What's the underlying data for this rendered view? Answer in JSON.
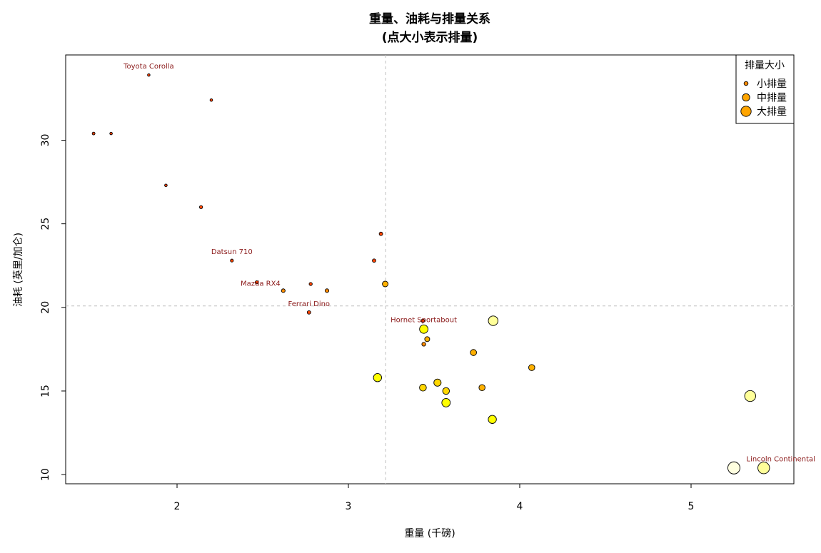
{
  "chart_data": {
    "type": "scatter",
    "title": "重量、油耗与排量关系",
    "subtitle": "(点大小表示排量)",
    "xlabel": "重量 (千磅)",
    "ylabel": "油耗 (英里/加仑)",
    "xlim": [
      1.35,
      5.6
    ],
    "ylim": [
      9.45,
      35.1
    ],
    "xticks": [
      2,
      3,
      4,
      5
    ],
    "yticks": [
      10,
      15,
      20,
      25,
      30
    ],
    "reference_lines": {
      "vertical_x": 3.217,
      "horizontal_y": 20.09,
      "style": "dashed gray"
    },
    "grid": false,
    "legend": {
      "title": "排量大小",
      "placement": "top-right",
      "entries": [
        {
          "label": "小排量",
          "size": "small",
          "color": "#ff8c00"
        },
        {
          "label": "中排量",
          "size": "medium",
          "color": "#ffa500"
        },
        {
          "label": "大排量",
          "size": "large",
          "color": "#ffa500"
        }
      ]
    },
    "point_colors": {
      "small": "#ff4500",
      "low_mid": "#ff8c00",
      "mid": "#ffb000",
      "mid_high": "#ffd700",
      "high": "#ffff00",
      "very_high": "#ffff99",
      "max": "#ffffe0"
    },
    "points": [
      {
        "x": 1.513,
        "y": 30.4,
        "disp": 95.1,
        "color_key": "small"
      },
      {
        "x": 1.615,
        "y": 30.4,
        "disp": 75.7,
        "color_key": "small"
      },
      {
        "x": 1.835,
        "y": 33.9,
        "disp": 71.1,
        "color_key": "small",
        "label": "Toyota Corolla"
      },
      {
        "x": 1.935,
        "y": 27.3,
        "disp": 79.0,
        "color_key": "small"
      },
      {
        "x": 2.2,
        "y": 32.4,
        "disp": 78.7,
        "color_key": "small"
      },
      {
        "x": 2.14,
        "y": 26.0,
        "disp": 120.3,
        "color_key": "small"
      },
      {
        "x": 2.32,
        "y": 22.8,
        "disp": 108.0,
        "color_key": "small",
        "label": "Datsun 710"
      },
      {
        "x": 2.465,
        "y": 21.5,
        "disp": 120.1,
        "color_key": "small"
      },
      {
        "x": 2.62,
        "y": 21.0,
        "disp": 160.0,
        "color_key": "low_mid",
        "label": "Mazda RX4"
      },
      {
        "x": 2.77,
        "y": 19.7,
        "disp": 145.0,
        "color_key": "small",
        "label": "Ferrari Dino"
      },
      {
        "x": 2.78,
        "y": 21.4,
        "disp": 121.0,
        "color_key": "small"
      },
      {
        "x": 2.875,
        "y": 21.0,
        "disp": 160.0,
        "color_key": "low_mid"
      },
      {
        "x": 3.15,
        "y": 22.8,
        "disp": 140.8,
        "color_key": "small"
      },
      {
        "x": 3.19,
        "y": 24.4,
        "disp": 146.7,
        "color_key": "small"
      },
      {
        "x": 3.215,
        "y": 21.4,
        "disp": 258.0,
        "color_key": "mid"
      },
      {
        "x": 3.17,
        "y": 15.8,
        "disp": 351.0,
        "color_key": "high"
      },
      {
        "x": 3.435,
        "y": 19.2,
        "disp": 145.0,
        "color_key": "small"
      },
      {
        "x": 3.44,
        "y": 18.7,
        "disp": 360.0,
        "color_key": "high",
        "label": "Hornet Sportabout"
      },
      {
        "x": 3.44,
        "y": 17.8,
        "disp": 167.6,
        "color_key": "low_mid"
      },
      {
        "x": 3.46,
        "y": 18.1,
        "disp": 225.0,
        "color_key": "mid"
      },
      {
        "x": 3.435,
        "y": 15.2,
        "disp": 304.0,
        "color_key": "mid_high"
      },
      {
        "x": 3.52,
        "y": 15.5,
        "disp": 318.0,
        "color_key": "mid_high"
      },
      {
        "x": 3.57,
        "y": 15.0,
        "disp": 301.0,
        "color_key": "mid_high"
      },
      {
        "x": 3.57,
        "y": 14.3,
        "disp": 360.0,
        "color_key": "high"
      },
      {
        "x": 3.73,
        "y": 17.3,
        "disp": 275.8,
        "color_key": "mid"
      },
      {
        "x": 3.78,
        "y": 15.2,
        "disp": 275.8,
        "color_key": "mid"
      },
      {
        "x": 3.84,
        "y": 13.3,
        "disp": 350.0,
        "color_key": "high"
      },
      {
        "x": 3.845,
        "y": 19.2,
        "disp": 400.0,
        "color_key": "very_high"
      },
      {
        "x": 4.07,
        "y": 16.4,
        "disp": 275.8,
        "color_key": "mid"
      },
      {
        "x": 5.25,
        "y": 10.4,
        "disp": 472.0,
        "color_key": "max"
      },
      {
        "x": 5.345,
        "y": 14.7,
        "disp": 440.0,
        "color_key": "very_high"
      },
      {
        "x": 5.424,
        "y": 10.4,
        "disp": 460.0,
        "color_key": "very_high",
        "label": "Lincoln Continental"
      }
    ]
  }
}
